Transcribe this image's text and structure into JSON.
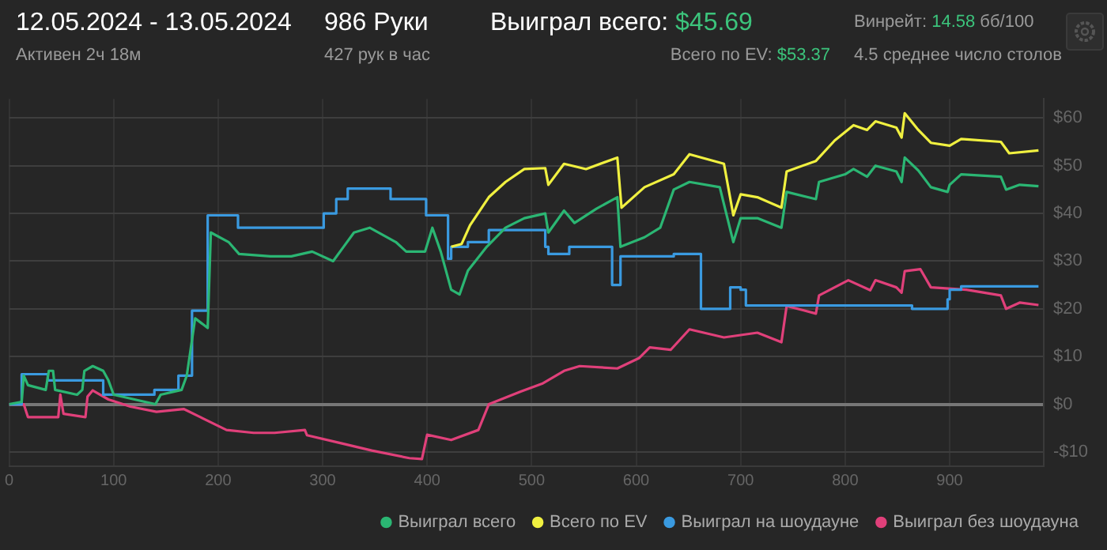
{
  "chart_data": {
    "type": "line",
    "title": "12.05.2024 - 13.05.2024",
    "subtitle": "Активен 2ч 18м",
    "annotations": [
      "986 Руки",
      "427 рук в час",
      "Выиграл всего: $45.69",
      "Всего по EV: $53.37",
      "Винрейт: 14.58 бб/100",
      "4.5 среднее число столов"
    ],
    "series": [
      {
        "name": "Выиграл всего",
        "color": "#2bb673",
        "x": [
          0,
          12,
          14,
          18,
          35,
          38,
          42,
          44,
          65,
          70,
          72,
          80,
          90,
          95,
          100,
          120,
          140,
          145,
          165,
          170,
          178,
          190,
          193,
          210,
          220,
          250,
          270,
          290,
          310,
          320,
          330,
          345,
          370,
          380,
          398,
          405,
          413,
          423,
          431,
          439,
          457,
          475,
          493,
          513,
          516,
          531,
          541,
          562,
          582,
          585,
          608,
          623,
          636,
          651,
          680,
          693,
          700,
          716,
          739,
          744,
          772,
          775,
          800,
          808,
          821,
          829,
          849,
          854,
          857,
          870,
          882,
          898,
          900,
          911,
          949,
          954,
          967,
          985
        ],
        "values": [
          0,
          0.5,
          6,
          4,
          3,
          7,
          7,
          3,
          2,
          3,
          7,
          8,
          7,
          5,
          2,
          1,
          0,
          2,
          3,
          6,
          18,
          16,
          36,
          34,
          31.5,
          31,
          31,
          32,
          30,
          33,
          36,
          37,
          34,
          32,
          32,
          37,
          32,
          24,
          23,
          28,
          33,
          37,
          39,
          40,
          36,
          40.6,
          38,
          41,
          43.4,
          33,
          35,
          37,
          45,
          46.6,
          45.5,
          34,
          39,
          39,
          37,
          44.5,
          43,
          46.6,
          48.2,
          49.3,
          47.7,
          50,
          48.8,
          46.6,
          51.7,
          49,
          45.5,
          44.5,
          46,
          48.2,
          47.7,
          45,
          46,
          45.7
        ]
      },
      {
        "name": "Всего по EV",
        "color": "#f0f040",
        "x": [
          423,
          433,
          441,
          459,
          475,
          493,
          513,
          516,
          531,
          552,
          582,
          586,
          608,
          636,
          651,
          684,
          693,
          700,
          716,
          739,
          744,
          772,
          790,
          808,
          821,
          829,
          849,
          854,
          857,
          870,
          882,
          900,
          911,
          949,
          957,
          985
        ],
        "values": [
          33,
          33.6,
          37.5,
          43.4,
          46.6,
          49.3,
          49.5,
          46,
          50.4,
          49.3,
          51.7,
          41.2,
          45.5,
          48.2,
          52.4,
          50.4,
          39.6,
          44,
          43.4,
          41.2,
          48.8,
          51,
          55.3,
          58.5,
          57.5,
          59.3,
          58,
          55.9,
          61,
          57.5,
          54.8,
          54.2,
          55.6,
          55,
          52.6,
          53.2
        ]
      },
      {
        "name": "Выиграл на шоудауне",
        "color": "#3a9ae0",
        "type": "step",
        "x": [
          0,
          12,
          14,
          37,
          40,
          90,
          92,
          139,
          141,
          162,
          164,
          175,
          177,
          190,
          192,
          219,
          221,
          301,
          303,
          313,
          315,
          324,
          326,
          365,
          367,
          399,
          401,
          420,
          423,
          439,
          459,
          475,
          513,
          516,
          536,
          577,
          585,
          636,
          662,
          690,
          700,
          705,
          864,
          898,
          900,
          911,
          924,
          985
        ],
        "values": [
          0,
          0,
          6.3,
          6.3,
          5,
          5,
          2,
          2,
          3,
          3,
          6,
          6,
          19.6,
          19.6,
          39.6,
          39.6,
          37,
          37,
          40,
          40,
          43,
          43,
          45.2,
          45.2,
          43,
          43,
          39.6,
          39.6,
          30.5,
          33,
          34,
          36.5,
          36.5,
          33,
          31.5,
          33,
          25,
          31,
          31.5,
          20,
          24.5,
          24,
          20.7,
          20,
          22,
          24,
          24.7,
          24.7
        ]
      },
      {
        "name": "Выиграл без шоудауна",
        "color": "#e0407a",
        "x": [
          0,
          14,
          18,
          47,
          49,
          52,
          73,
          75,
          80,
          95,
          116,
          141,
          167,
          183,
          208,
          234,
          254,
          283,
          285,
          316,
          347,
          383,
          395,
          400,
          423,
          449,
          459,
          490,
          510,
          531,
          546,
          582,
          603,
          613,
          633,
          651,
          684,
          716,
          739,
          744,
          772,
          775,
          803,
          824,
          829,
          849,
          854,
          857,
          872,
          882,
          916,
          949,
          954,
          967,
          985
        ],
        "values": [
          0,
          0,
          -2.7,
          -2.7,
          2,
          -2,
          -2.7,
          1.6,
          2.9,
          1,
          -0.5,
          -1.6,
          -1,
          -2.7,
          -5.4,
          -6,
          -6,
          -5.4,
          -6.5,
          -8.1,
          -9.7,
          -11.3,
          -11.5,
          -6.4,
          -7.5,
          -5.4,
          0,
          2.7,
          4.3,
          7,
          8,
          7.5,
          9.7,
          11.9,
          11.4,
          15.7,
          14,
          15,
          13,
          20.6,
          19,
          22.8,
          26,
          23.9,
          26,
          24.5,
          23.4,
          27.9,
          28.3,
          24.5,
          24,
          22.8,
          20,
          21.3,
          20.8
        ]
      }
    ],
    "xlim": [
      0,
      990
    ],
    "xticks": [
      0,
      100,
      200,
      300,
      400,
      500,
      600,
      700,
      800,
      900
    ],
    "ylim": [
      -13,
      64
    ],
    "yticks": [
      {
        "value": -10,
        "label": "-$10"
      },
      {
        "value": 0,
        "label": "$0"
      },
      {
        "value": 10,
        "label": "$10"
      },
      {
        "value": 20,
        "label": "$20"
      },
      {
        "value": 30,
        "label": "$30"
      },
      {
        "value": 40,
        "label": "$40"
      },
      {
        "value": 50,
        "label": "$50"
      },
      {
        "value": 60,
        "label": "$60"
      }
    ],
    "grid": true,
    "legend": "bottom right",
    "marker": "none",
    "line_style": "solid"
  }
}
